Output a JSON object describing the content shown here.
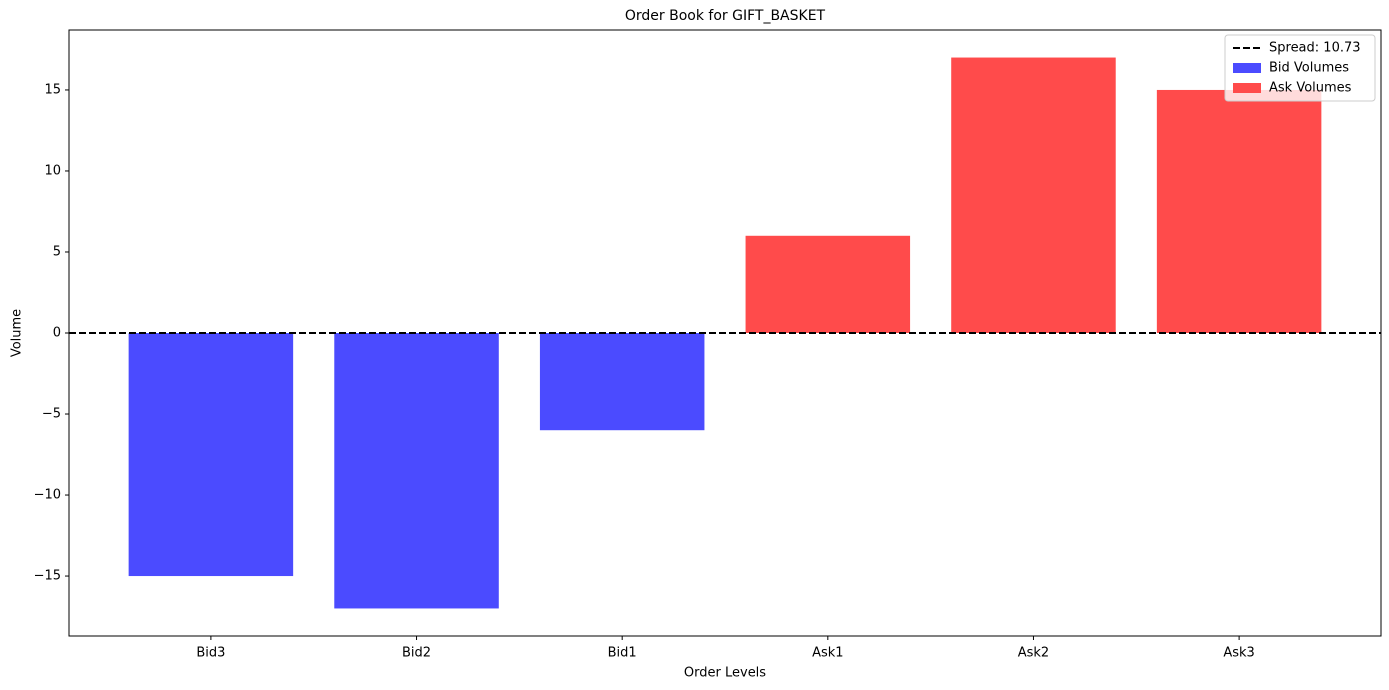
{
  "chart_data": {
    "type": "bar",
    "title": "Order Book for GIFT_BASKET",
    "xlabel": "Order Levels",
    "ylabel": "Volume",
    "categories": [
      "Bid3",
      "Bid2",
      "Bid1",
      "Ask1",
      "Ask2",
      "Ask3"
    ],
    "series": [
      {
        "name": "Bid Volumes",
        "color": "#4b4bff",
        "values": [
          -15,
          -17,
          -6,
          null,
          null,
          null
        ]
      },
      {
        "name": "Ask Volumes",
        "color": "#ff4b4b",
        "values": [
          null,
          null,
          null,
          6,
          17,
          15
        ]
      }
    ],
    "hline": {
      "label": "Spread: 10.73",
      "value": 0,
      "color": "#000000"
    },
    "ylim": [
      -18.7,
      18.7
    ],
    "yticks": [
      {
        "value": -15,
        "label": "−15"
      },
      {
        "value": -10,
        "label": "−10"
      },
      {
        "value": -5,
        "label": "−5"
      },
      0,
      5,
      10,
      15
    ],
    "legend": "upper right",
    "grid": false
  }
}
